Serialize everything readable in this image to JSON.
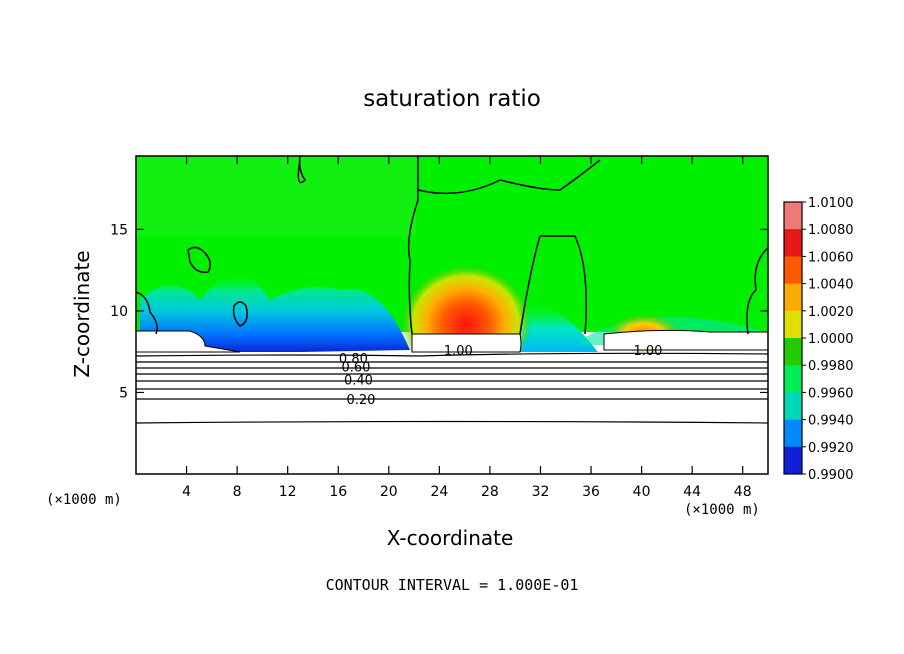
{
  "chart_data": {
    "type": "heatmap",
    "title": "saturation ratio",
    "xlabel": "X-coordinate",
    "ylabel": "Z-coordinate",
    "x_unit_label": "(×1000 m)",
    "footer": "CONTOUR INTERVAL = 1.000E-01",
    "x_ticks": [
      4,
      8,
      12,
      16,
      20,
      24,
      28,
      32,
      36,
      40,
      44,
      48
    ],
    "y_ticks": [
      5,
      10,
      15
    ],
    "xlim": [
      0,
      50
    ],
    "ylim": [
      0,
      19.5
    ],
    "colorbar": {
      "labels": [
        "1.0100",
        "1.0080",
        "1.0060",
        "1.0040",
        "1.0020",
        "1.0000",
        "0.9980",
        "0.9960",
        "0.9940",
        "0.9920",
        "0.9900"
      ],
      "colors": [
        "#f07878",
        "#e81818",
        "#ff5a00",
        "#ffaa00",
        "#e0e000",
        "#22cc00",
        "#00ee55",
        "#00d8b8",
        "#0088ff",
        "#1020d8",
        "#7a18b0"
      ]
    },
    "contour_labels": [
      {
        "text": "1.00",
        "x": 25.5,
        "z": 7.6
      },
      {
        "text": "1.00",
        "x": 40.5,
        "z": 7.6
      },
      {
        "text": "0.80",
        "x": 17.2,
        "z": 7.1
      },
      {
        "text": "0.60",
        "x": 17.4,
        "z": 6.6
      },
      {
        "text": "0.40",
        "x": 17.6,
        "z": 5.8
      },
      {
        "text": "0.20",
        "x": 17.8,
        "z": 4.6
      }
    ],
    "field_regions": [
      {
        "name": "background",
        "min": 1.0,
        "max": 1.001,
        "region": "upper domain"
      },
      {
        "name": "blue-band-left",
        "min": 0.992,
        "max": 0.996,
        "x_range": [
          2,
          20
        ],
        "z_range": [
          7.5,
          10
        ]
      },
      {
        "name": "blue-band-center",
        "min": 0.994,
        "max": 0.997,
        "x_range": [
          30,
          35
        ],
        "z_range": [
          7.5,
          9
        ]
      },
      {
        "name": "red-core",
        "min": 1.004,
        "max": 1.008,
        "x_range": [
          23,
          29
        ],
        "z_range": [
          9,
          11.5
        ]
      },
      {
        "name": "orange-core-right",
        "min": 1.002,
        "max": 1.004,
        "x_range": [
          38,
          42
        ],
        "z_range": [
          9,
          10
        ]
      }
    ]
  }
}
